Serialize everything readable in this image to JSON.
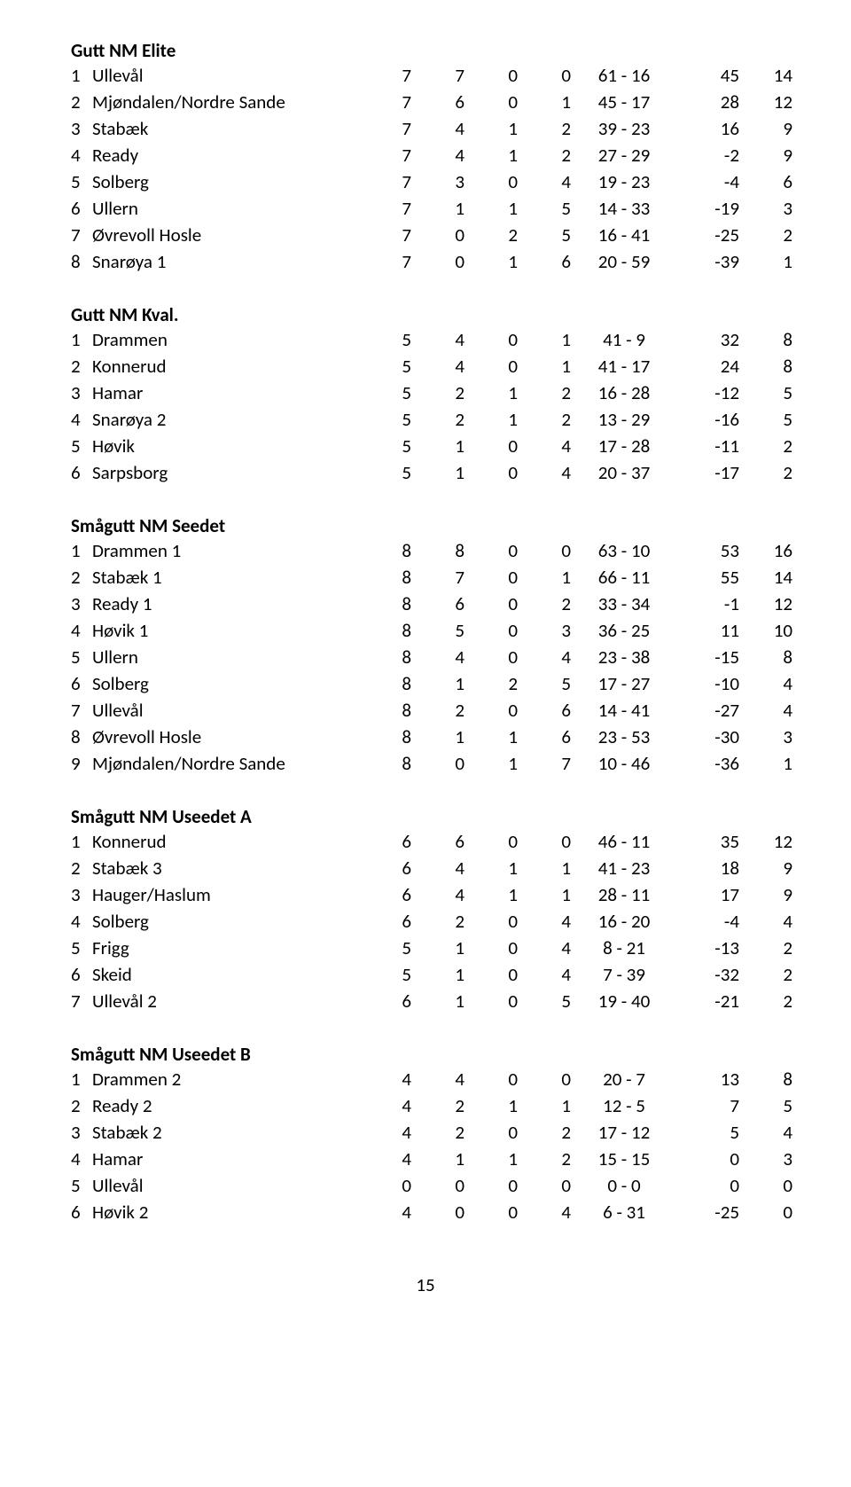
{
  "page_number": "15",
  "sections": [
    {
      "title": "Gutt NM Elite",
      "rows": [
        {
          "rank": "1",
          "team": "Ullevål",
          "p": "7",
          "w": "7",
          "d": "0",
          "l": "0",
          "score": "61 - 16",
          "diff": "45",
          "pts": "14"
        },
        {
          "rank": "2",
          "team": "Mjøndalen/Nordre Sande",
          "p": "7",
          "w": "6",
          "d": "0",
          "l": "1",
          "score": "45 - 17",
          "diff": "28",
          "pts": "12"
        },
        {
          "rank": "3",
          "team": "Stabæk",
          "p": "7",
          "w": "4",
          "d": "1",
          "l": "2",
          "score": "39 - 23",
          "diff": "16",
          "pts": "9"
        },
        {
          "rank": "4",
          "team": "Ready",
          "p": "7",
          "w": "4",
          "d": "1",
          "l": "2",
          "score": "27 - 29",
          "diff": "-2",
          "pts": "9"
        },
        {
          "rank": "5",
          "team": "Solberg",
          "p": "7",
          "w": "3",
          "d": "0",
          "l": "4",
          "score": "19 - 23",
          "diff": "-4",
          "pts": "6"
        },
        {
          "rank": "6",
          "team": "Ullern",
          "p": "7",
          "w": "1",
          "d": "1",
          "l": "5",
          "score": "14 - 33",
          "diff": "-19",
          "pts": "3"
        },
        {
          "rank": "7",
          "team": "Øvrevoll Hosle",
          "p": "7",
          "w": "0",
          "d": "2",
          "l": "5",
          "score": "16 - 41",
          "diff": "-25",
          "pts": "2"
        },
        {
          "rank": "8",
          "team": "Snarøya 1",
          "p": "7",
          "w": "0",
          "d": "1",
          "l": "6",
          "score": "20 - 59",
          "diff": "-39",
          "pts": "1"
        }
      ]
    },
    {
      "title": "Gutt NM Kval.",
      "rows": [
        {
          "rank": "1",
          "team": "Drammen",
          "p": "5",
          "w": "4",
          "d": "0",
          "l": "1",
          "score": "41 - 9",
          "diff": "32",
          "pts": "8"
        },
        {
          "rank": "2",
          "team": "Konnerud",
          "p": "5",
          "w": "4",
          "d": "0",
          "l": "1",
          "score": "41 - 17",
          "diff": "24",
          "pts": "8"
        },
        {
          "rank": "3",
          "team": "Hamar",
          "p": "5",
          "w": "2",
          "d": "1",
          "l": "2",
          "score": "16 - 28",
          "diff": "-12",
          "pts": "5"
        },
        {
          "rank": "4",
          "team": "Snarøya 2",
          "p": "5",
          "w": "2",
          "d": "1",
          "l": "2",
          "score": "13 - 29",
          "diff": "-16",
          "pts": "5"
        },
        {
          "rank": "5",
          "team": "Høvik",
          "p": "5",
          "w": "1",
          "d": "0",
          "l": "4",
          "score": "17 - 28",
          "diff": "-11",
          "pts": "2"
        },
        {
          "rank": "6",
          "team": "Sarpsborg",
          "p": "5",
          "w": "1",
          "d": "0",
          "l": "4",
          "score": "20 - 37",
          "diff": "-17",
          "pts": "2"
        }
      ]
    },
    {
      "title": "Smågutt NM Seedet",
      "rows": [
        {
          "rank": "1",
          "team": "Drammen 1",
          "p": "8",
          "w": "8",
          "d": "0",
          "l": "0",
          "score": "63 - 10",
          "diff": "53",
          "pts": "16"
        },
        {
          "rank": "2",
          "team": "Stabæk 1",
          "p": "8",
          "w": "7",
          "d": "0",
          "l": "1",
          "score": "66 - 11",
          "diff": "55",
          "pts": "14"
        },
        {
          "rank": "3",
          "team": "Ready 1",
          "p": "8",
          "w": "6",
          "d": "0",
          "l": "2",
          "score": "33 - 34",
          "diff": "-1",
          "pts": "12"
        },
        {
          "rank": "4",
          "team": "Høvik 1",
          "p": "8",
          "w": "5",
          "d": "0",
          "l": "3",
          "score": "36 - 25",
          "diff": "11",
          "pts": "10"
        },
        {
          "rank": "5",
          "team": "Ullern",
          "p": "8",
          "w": "4",
          "d": "0",
          "l": "4",
          "score": "23 - 38",
          "diff": "-15",
          "pts": "8"
        },
        {
          "rank": "6",
          "team": "Solberg",
          "p": "8",
          "w": "1",
          "d": "2",
          "l": "5",
          "score": "17 - 27",
          "diff": "-10",
          "pts": "4"
        },
        {
          "rank": "7",
          "team": "Ullevål",
          "p": "8",
          "w": "2",
          "d": "0",
          "l": "6",
          "score": "14 - 41",
          "diff": "-27",
          "pts": "4"
        },
        {
          "rank": "8",
          "team": "Øvrevoll Hosle",
          "p": "8",
          "w": "1",
          "d": "1",
          "l": "6",
          "score": "23 - 53",
          "diff": "-30",
          "pts": "3"
        },
        {
          "rank": "9",
          "team": "Mjøndalen/Nordre Sande",
          "p": "8",
          "w": "0",
          "d": "1",
          "l": "7",
          "score": "10 - 46",
          "diff": "-36",
          "pts": "1"
        }
      ]
    },
    {
      "title": "Smågutt NM Useedet A",
      "rows": [
        {
          "rank": "1",
          "team": "Konnerud",
          "p": "6",
          "w": "6",
          "d": "0",
          "l": "0",
          "score": "46 - 11",
          "diff": "35",
          "pts": "12"
        },
        {
          "rank": "2",
          "team": "Stabæk 3",
          "p": "6",
          "w": "4",
          "d": "1",
          "l": "1",
          "score": "41 - 23",
          "diff": "18",
          "pts": "9"
        },
        {
          "rank": "3",
          "team": "Hauger/Haslum",
          "p": "6",
          "w": "4",
          "d": "1",
          "l": "1",
          "score": "28 - 11",
          "diff": "17",
          "pts": "9"
        },
        {
          "rank": "4",
          "team": "Solberg",
          "p": "6",
          "w": "2",
          "d": "0",
          "l": "4",
          "score": "16 - 20",
          "diff": "-4",
          "pts": "4"
        },
        {
          "rank": "5",
          "team": "Frigg",
          "p": "5",
          "w": "1",
          "d": "0",
          "l": "4",
          "score": "8 - 21",
          "diff": "-13",
          "pts": "2"
        },
        {
          "rank": "6",
          "team": "Skeid",
          "p": "5",
          "w": "1",
          "d": "0",
          "l": "4",
          "score": "7 - 39",
          "diff": "-32",
          "pts": "2"
        },
        {
          "rank": "7",
          "team": "Ullevål 2",
          "p": "6",
          "w": "1",
          "d": "0",
          "l": "5",
          "score": "19 - 40",
          "diff": "-21",
          "pts": "2"
        }
      ]
    },
    {
      "title": "Smågutt NM Useedet B",
      "rows": [
        {
          "rank": "1",
          "team": "Drammen 2",
          "p": "4",
          "w": "4",
          "d": "0",
          "l": "0",
          "score": "20 - 7",
          "diff": "13",
          "pts": "8"
        },
        {
          "rank": "2",
          "team": "Ready 2",
          "p": "4",
          "w": "2",
          "d": "1",
          "l": "1",
          "score": "12 - 5",
          "diff": "7",
          "pts": "5"
        },
        {
          "rank": "3",
          "team": "Stabæk 2",
          "p": "4",
          "w": "2",
          "d": "0",
          "l": "2",
          "score": "17 - 12",
          "diff": "5",
          "pts": "4"
        },
        {
          "rank": "4",
          "team": "Hamar",
          "p": "4",
          "w": "1",
          "d": "1",
          "l": "2",
          "score": "15 - 15",
          "diff": "0",
          "pts": "3"
        },
        {
          "rank": "5",
          "team": "Ullevål",
          "p": "0",
          "w": "0",
          "d": "0",
          "l": "0",
          "score": "0 - 0",
          "diff": "0",
          "pts": "0"
        },
        {
          "rank": "6",
          "team": "Høvik 2",
          "p": "4",
          "w": "0",
          "d": "0",
          "l": "4",
          "score": "6 - 31",
          "diff": "-25",
          "pts": "0"
        }
      ]
    }
  ]
}
